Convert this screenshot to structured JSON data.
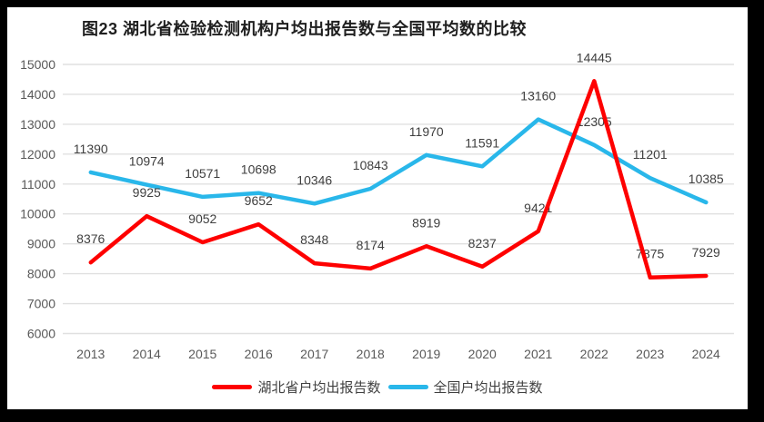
{
  "title": "图23 湖北省检验检测机构户均出报告数与全国平均数的比较",
  "chart_data": {
    "type": "line",
    "title": "图23 湖北省检验检测机构户均出报告数与全国平均数的比较",
    "categories": [
      "2013",
      "2014",
      "2015",
      "2016",
      "2017",
      "2018",
      "2019",
      "2020",
      "2021",
      "2022",
      "2023",
      "2024"
    ],
    "series": [
      {
        "name": "湖北省户均出报告数",
        "color": "#FE0000",
        "values": [
          8376,
          9925,
          9052,
          9652,
          8348,
          8174,
          8919,
          8237,
          9421,
          14445,
          7875,
          7929
        ]
      },
      {
        "name": "全国户均出报告数",
        "color": "#29B7EA",
        "values": [
          11390,
          10974,
          10571,
          10698,
          10346,
          10843,
          11970,
          11591,
          13160,
          12305,
          11201,
          10385
        ]
      }
    ],
    "xlabel": "",
    "ylabel": "",
    "ylim": [
      6000,
      15000
    ],
    "ytick_step": 1000,
    "grid": true,
    "legend_position": "bottom",
    "data_labels": true,
    "style": {
      "gridline_color": "#E0E0E0",
      "axis_text_color": "#595959",
      "data_label_color": "#3F3F3F",
      "background": "#FFFFFF",
      "frame_color": "#000000"
    }
  }
}
